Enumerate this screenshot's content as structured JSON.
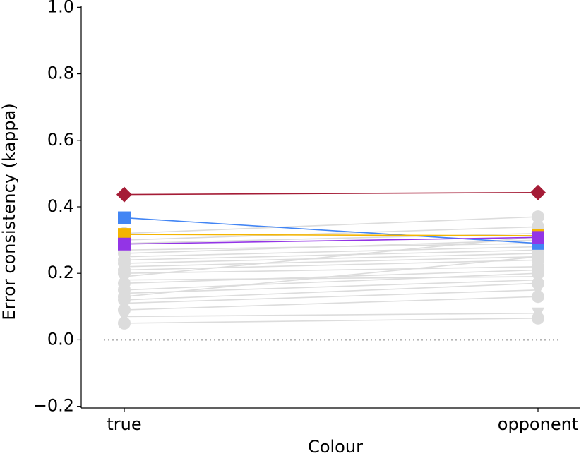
{
  "chart_data": {
    "type": "line",
    "categories": [
      "true",
      "opponent"
    ],
    "x_label": "Colour",
    "y_label": "Error consistency (kappa)",
    "ylim": [
      -0.205,
      1.005
    ],
    "yticks": [
      {
        "value": -0.2,
        "label": "−0.2"
      },
      {
        "value": 0,
        "label": "0.0"
      },
      {
        "value": 0.2,
        "label": "0.2"
      },
      {
        "value": 0.4,
        "label": "0.4"
      },
      {
        "value": 0.6,
        "label": "0.6"
      },
      {
        "value": 0.8,
        "label": "0.8"
      },
      {
        "value": 1,
        "label": "1.0"
      }
    ],
    "reference_line": 0,
    "series": [
      {
        "color": "#dcdcdc",
        "marker": "circle",
        "values": [
          0.05,
          0.065
        ]
      },
      {
        "color": "#dcdcdc",
        "marker": "triangle",
        "values": [
          0.07,
          0.08
        ]
      },
      {
        "color": "#dcdcdc",
        "marker": "circle",
        "values": [
          0.09,
          0.13
        ]
      },
      {
        "color": "#dcdcdc",
        "marker": "triangle",
        "values": [
          0.11,
          0.15
        ]
      },
      {
        "color": "#dcdcdc",
        "marker": "circle",
        "values": [
          0.12,
          0.17
        ]
      },
      {
        "color": "#dcdcdc",
        "marker": "triangle",
        "values": [
          0.14,
          0.18
        ]
      },
      {
        "color": "#dcdcdc",
        "marker": "circle",
        "values": [
          0.15,
          0.2
        ]
      },
      {
        "color": "#dcdcdc",
        "marker": "circle",
        "values": [
          0.17,
          0.21
        ]
      },
      {
        "color": "#dcdcdc",
        "marker": "triangle",
        "values": [
          0.18,
          0.19
        ]
      },
      {
        "color": "#dcdcdc",
        "marker": "circle",
        "values": [
          0.2,
          0.22
        ]
      },
      {
        "color": "#dcdcdc",
        "marker": "circle",
        "values": [
          0.21,
          0.24
        ]
      },
      {
        "color": "#dcdcdc",
        "marker": "triangle",
        "values": [
          0.22,
          0.25
        ]
      },
      {
        "color": "#dcdcdc",
        "marker": "circle",
        "values": [
          0.23,
          0.26
        ]
      },
      {
        "color": "#dcdcdc",
        "marker": "circle",
        "values": [
          0.24,
          0.27
        ]
      },
      {
        "color": "#dcdcdc",
        "marker": "triangle",
        "values": [
          0.25,
          0.28
        ]
      },
      {
        "color": "#dcdcdc",
        "marker": "circle",
        "values": [
          0.26,
          0.3
        ]
      },
      {
        "color": "#dcdcdc",
        "marker": "circle",
        "values": [
          0.27,
          0.29
        ]
      },
      {
        "color": "#dcdcdc",
        "marker": "circle",
        "values": [
          0.29,
          0.32
        ]
      },
      {
        "color": "#dcdcdc",
        "marker": "circle",
        "values": [
          0.3,
          0.34
        ]
      },
      {
        "color": "#dcdcdc",
        "marker": "circle",
        "values": [
          0.32,
          0.37
        ]
      },
      {
        "color": "#dcdcdc",
        "marker": "circle",
        "values": [
          0.13,
          0.25
        ]
      },
      {
        "color": "#dcdcdc",
        "marker": "triangle",
        "values": [
          0.19,
          0.31
        ]
      },
      {
        "color": "#a51c36",
        "marker": "diamond",
        "values": [
          0.437,
          0.443
        ]
      },
      {
        "color": "#4285f4",
        "marker": "square",
        "values": [
          0.367,
          0.29
        ]
      },
      {
        "color": "#f4b400",
        "marker": "square",
        "values": [
          0.317,
          0.313
        ]
      },
      {
        "color": "#9334e6",
        "marker": "square",
        "values": [
          0.288,
          0.308
        ]
      }
    ]
  }
}
